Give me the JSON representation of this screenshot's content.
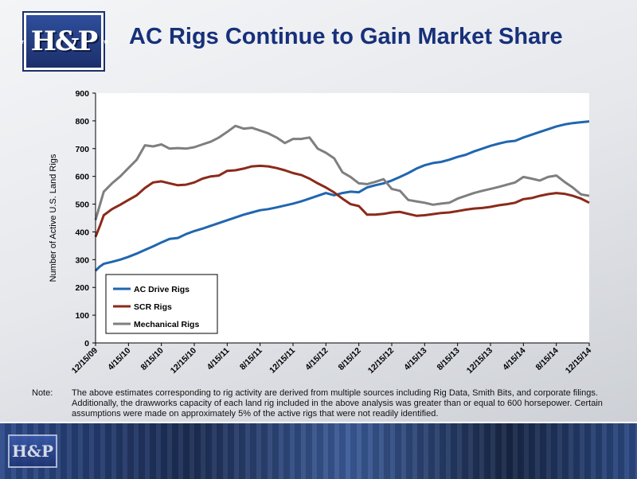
{
  "logo": {
    "text": "H&P"
  },
  "slide": {
    "title": "AC Rigs Continue to Gain Market Share"
  },
  "note": {
    "label": "Note:",
    "text": "The above estimates corresponding to rig activity are derived from multiple sources including Rig Data, Smith Bits, and corporate filings.  Additionally, the drawworks capacity of each land rig included in the above analysis was greater than or equal to 600 horsepower.  Certain assumptions were made on approximately 5% of the active rigs that were not readily identified."
  },
  "colors": {
    "ac": "#2066b0",
    "scr": "#8b2a1a",
    "mech": "#7f7f7f",
    "title": "#17307a"
  },
  "chart_data": {
    "type": "line",
    "title": "",
    "xlabel": "",
    "ylabel": "Number of Active U.S. Land Rigs",
    "ylim": [
      0,
      900
    ],
    "yticks": [
      0,
      100,
      200,
      300,
      400,
      500,
      600,
      700,
      800,
      900
    ],
    "xrange_months": [
      0,
      60
    ],
    "xticks": [
      {
        "m": 0,
        "label": "12/15/09"
      },
      {
        "m": 4,
        "label": "4/15/10"
      },
      {
        "m": 8,
        "label": "8/15/10"
      },
      {
        "m": 12,
        "label": "12/15/10"
      },
      {
        "m": 16,
        "label": "4/15/11"
      },
      {
        "m": 20,
        "label": "8/15/11"
      },
      {
        "m": 24,
        "label": "12/15/11"
      },
      {
        "m": 28,
        "label": "4/15/12"
      },
      {
        "m": 32,
        "label": "8/15/12"
      },
      {
        "m": 36,
        "label": "12/15/12"
      },
      {
        "m": 40,
        "label": "4/15/13"
      },
      {
        "m": 44,
        "label": "8/15/13"
      },
      {
        "m": 48,
        "label": "12/15/13"
      },
      {
        "m": 52,
        "label": "4/15/14"
      },
      {
        "m": 56,
        "label": "8/15/14"
      },
      {
        "m": 60,
        "label": "12/15/14"
      }
    ],
    "grid": false,
    "legend": "bottom-left",
    "series": [
      {
        "name": "AC Drive Rigs",
        "color": "#2066b0",
        "x": [
          0,
          0.5,
          1,
          2,
          3,
          4,
          5,
          6,
          7,
          8,
          9,
          10,
          11,
          12,
          13,
          14,
          15,
          16,
          17,
          18,
          19,
          20,
          21,
          22,
          23,
          24,
          25,
          26,
          27,
          28,
          29,
          30,
          31,
          32,
          33,
          34,
          35,
          36,
          37,
          38,
          39,
          40,
          41,
          42,
          43,
          44,
          45,
          46,
          47,
          48,
          49,
          50,
          51,
          52,
          53,
          54,
          55,
          56,
          57,
          58,
          59,
          60
        ],
        "values": [
          260,
          275,
          285,
          292,
          300,
          310,
          322,
          335,
          348,
          362,
          375,
          378,
          392,
          403,
          412,
          422,
          432,
          442,
          452,
          462,
          470,
          478,
          482,
          488,
          495,
          502,
          510,
          520,
          530,
          540,
          532,
          540,
          545,
          543,
          560,
          568,
          575,
          585,
          598,
          612,
          628,
          640,
          648,
          652,
          660,
          670,
          678,
          690,
          700,
          710,
          718,
          725,
          728,
          740,
          750,
          760,
          770,
          780,
          787,
          792,
          795,
          798
        ]
      },
      {
        "name": "SCR Rigs",
        "color": "#8b2a1a",
        "x": [
          0,
          0.5,
          1,
          2,
          3,
          4,
          5,
          6,
          7,
          8,
          9,
          10,
          11,
          12,
          13,
          14,
          15,
          16,
          17,
          18,
          19,
          20,
          21,
          22,
          23,
          24,
          25,
          26,
          27,
          28,
          29,
          30,
          31,
          32,
          33,
          34,
          35,
          36,
          37,
          38,
          39,
          40,
          41,
          42,
          43,
          44,
          45,
          46,
          47,
          48,
          49,
          50,
          51,
          52,
          53,
          54,
          55,
          56,
          57,
          58,
          59,
          60
        ],
        "values": [
          382,
          420,
          460,
          482,
          498,
          515,
          532,
          558,
          578,
          582,
          575,
          568,
          570,
          578,
          592,
          600,
          603,
          620,
          622,
          628,
          636,
          638,
          636,
          630,
          622,
          612,
          605,
          592,
          575,
          560,
          542,
          520,
          500,
          493,
          462,
          462,
          465,
          470,
          472,
          465,
          458,
          460,
          464,
          468,
          470,
          475,
          480,
          484,
          486,
          490,
          496,
          500,
          505,
          518,
          522,
          530,
          536,
          540,
          537,
          530,
          520,
          505
        ]
      },
      {
        "name": "Mechanical Rigs",
        "color": "#7f7f7f",
        "x": [
          0,
          0.5,
          1,
          2,
          3,
          4,
          5,
          6,
          7,
          8,
          9,
          10,
          11,
          12,
          13,
          14,
          15,
          16,
          17,
          18,
          19,
          20,
          21,
          22,
          23,
          24,
          25,
          26,
          27,
          28,
          29,
          30,
          31,
          32,
          33,
          34,
          35,
          36,
          37,
          38,
          39,
          40,
          41,
          42,
          43,
          44,
          45,
          46,
          47,
          48,
          49,
          50,
          51,
          52,
          53,
          54,
          55,
          56,
          57,
          58,
          59,
          60
        ],
        "values": [
          443,
          495,
          545,
          575,
          600,
          630,
          660,
          712,
          708,
          715,
          700,
          702,
          700,
          705,
          715,
          725,
          740,
          760,
          782,
          772,
          775,
          765,
          755,
          740,
          720,
          735,
          735,
          740,
          700,
          685,
          665,
          615,
          598,
          575,
          572,
          580,
          590,
          555,
          548,
          515,
          510,
          505,
          498,
          502,
          505,
          520,
          530,
          540,
          548,
          555,
          562,
          570,
          578,
          598,
          592,
          585,
          598,
          603,
          580,
          560,
          535,
          530
        ]
      }
    ]
  }
}
